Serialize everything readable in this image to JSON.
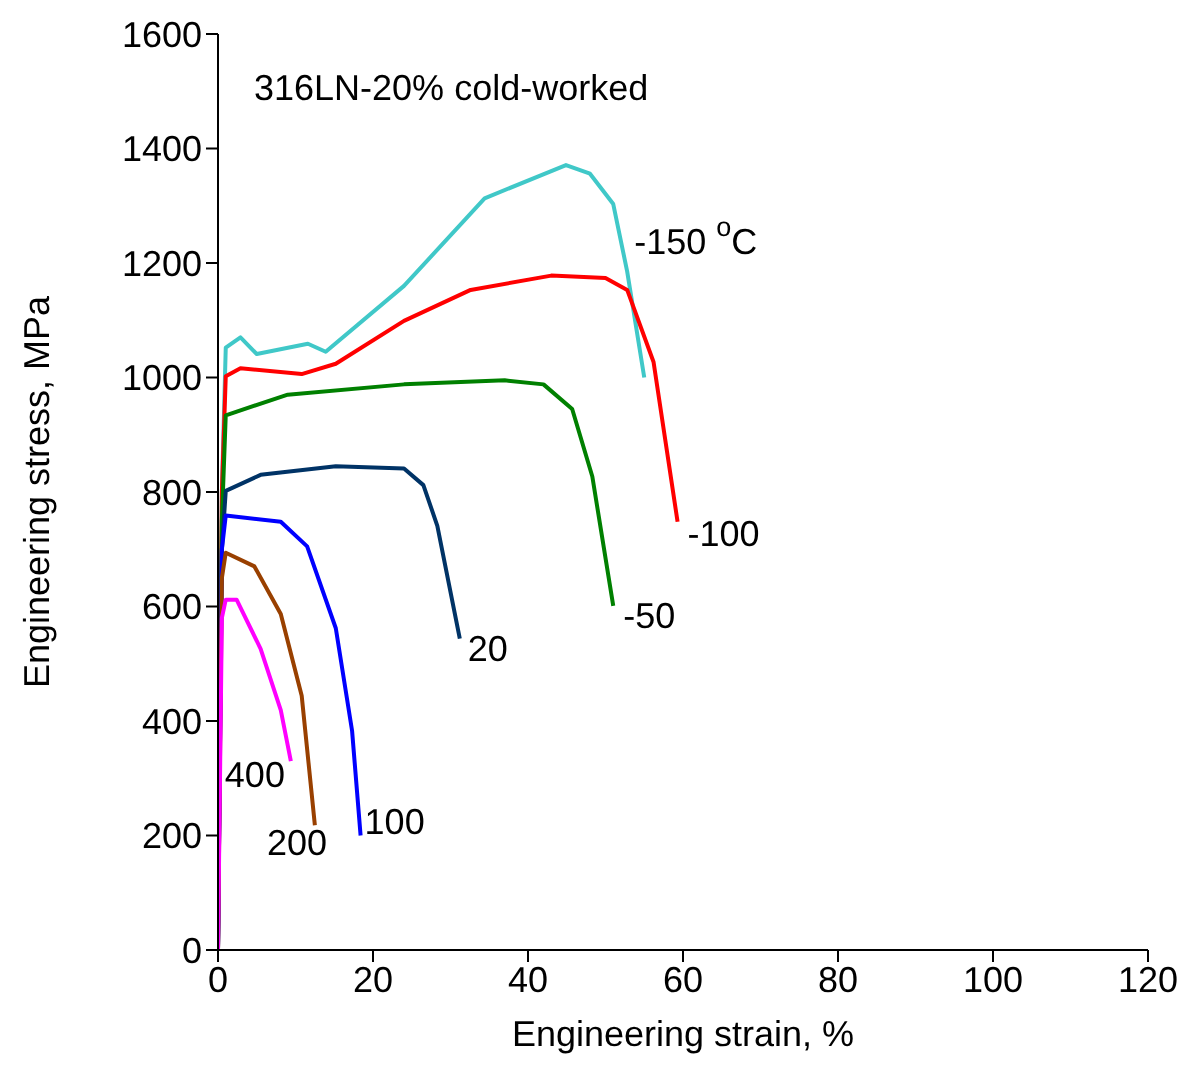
{
  "chart_data": {
    "type": "line",
    "xlabel": "Engineering strain, %",
    "ylabel": "Engineering stress, MPa",
    "annotations": [
      "316LN-20% cold-worked"
    ],
    "xlim": [
      0,
      120
    ],
    "xticks": [
      0,
      20,
      40,
      60,
      80,
      100,
      120
    ],
    "ylim": [
      0,
      1600
    ],
    "yticks": [
      0,
      200,
      400,
      600,
      800,
      1000,
      1200,
      1400,
      1600
    ],
    "marker": "none",
    "line_style": "solid",
    "series": [
      {
        "name": "-150 $^{o}$C",
        "color": "#40c8c8",
        "x": [
          0,
          0.5,
          1,
          2.9,
          5,
          11.6,
          13.9,
          24,
          34.4,
          44.9,
          48,
          51,
          52.8,
          55
        ],
        "values": [
          0,
          800,
          1052,
          1070,
          1041,
          1059,
          1045,
          1160,
          1313,
          1371,
          1356,
          1303,
          1185,
          1000
        ]
      },
      {
        "name": "-100",
        "color": "#ff0000",
        "x": [
          0,
          0.5,
          1,
          2.9,
          10.8,
          15.2,
          24,
          32.6,
          43,
          50,
          52.8,
          56.2,
          59.3
        ],
        "values": [
          0,
          800,
          1002,
          1016,
          1006,
          1024,
          1099,
          1153,
          1178,
          1174,
          1153,
          1027,
          748
        ]
      },
      {
        "name": "-50",
        "color": "#008000",
        "x": [
          0,
          0.5,
          1,
          9,
          24,
          37,
          42,
          45.7,
          48.3,
          51
        ],
        "values": [
          0,
          750,
          934,
          970,
          988,
          995,
          988,
          945,
          827,
          601
        ]
      },
      {
        "name": "20",
        "color": "#003366",
        "x": [
          0,
          0.5,
          1,
          5.5,
          15.2,
          24,
          26.5,
          28.3,
          31.2
        ],
        "values": [
          0,
          700,
          802,
          830,
          845,
          841,
          812,
          741,
          544
        ]
      },
      {
        "name": "100",
        "color": "#0000ff",
        "x": [
          0,
          0.5,
          1,
          8.1,
          11.5,
          15.2,
          17.3,
          18.4
        ],
        "values": [
          0,
          700,
          759,
          748,
          705,
          562,
          383,
          200
        ]
      },
      {
        "name": "200",
        "color": "#994000",
        "x": [
          0,
          0.5,
          1,
          4.7,
          8.1,
          10.8,
          12.5
        ],
        "values": [
          0,
          650,
          694,
          670,
          587,
          444,
          218
        ]
      },
      {
        "name": "400",
        "color": "#ff00ff",
        "x": [
          0,
          0.5,
          1,
          2.4,
          5.5,
          8.1,
          9.4
        ],
        "values": [
          0,
          580,
          612,
          612,
          526,
          419,
          330
        ]
      }
    ]
  }
}
